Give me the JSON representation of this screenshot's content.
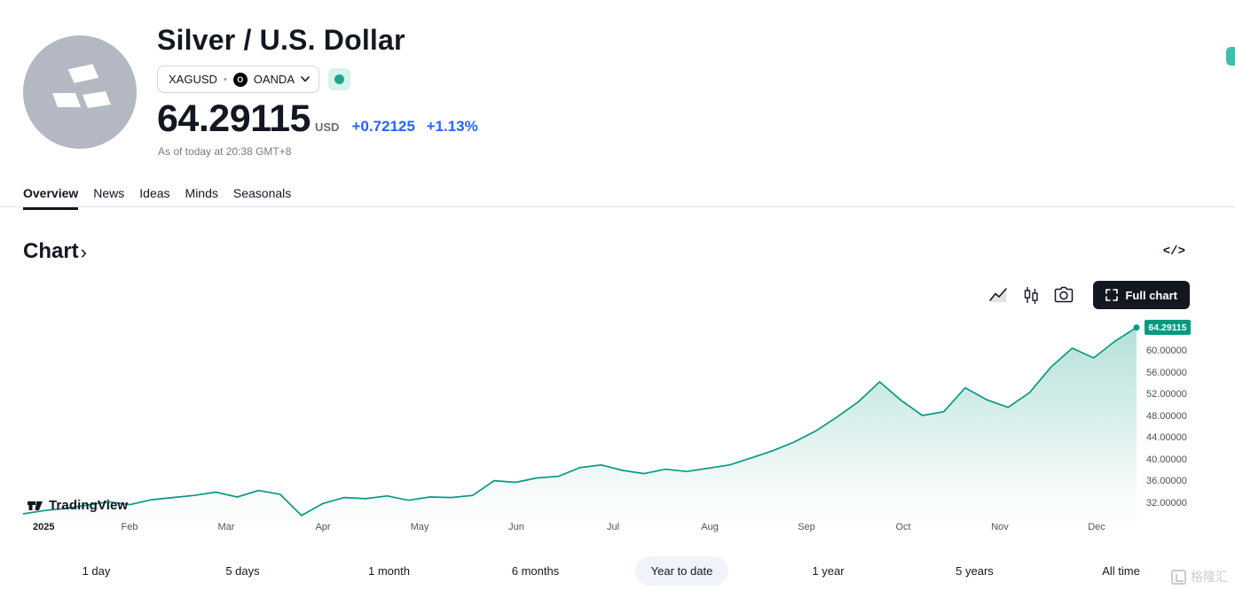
{
  "header": {
    "title": "Silver / U.S. Dollar",
    "symbol": "XAGUSD",
    "separator": "•",
    "exchange": "OANDA",
    "exchange_logo_letter": "O",
    "price": "64.29115",
    "currency": "USD",
    "change_abs": "+0.72125",
    "change_pct": "+1.13%",
    "as_of": "As of today at 20:38 GMT+8"
  },
  "tabs": {
    "items": [
      {
        "label": "Overview",
        "active": true
      },
      {
        "label": "News"
      },
      {
        "label": "Ideas"
      },
      {
        "label": "Minds"
      },
      {
        "label": "Seasonals"
      }
    ]
  },
  "chart_section": {
    "heading": "Chart",
    "chevron": "›",
    "code_icon_text": "</>",
    "full_chart_label": "Full chart",
    "logo_text": "TradingView"
  },
  "ranges": {
    "items": [
      {
        "label": "1 day"
      },
      {
        "label": "5 days"
      },
      {
        "label": "1 month"
      },
      {
        "label": "6 months"
      },
      {
        "label": "Year to date",
        "active": true
      },
      {
        "label": "1 year"
      },
      {
        "label": "5 years"
      },
      {
        "label": "All time"
      }
    ]
  },
  "watermark": {
    "text": "格隆汇"
  },
  "colors": {
    "accent_teal": "#089981",
    "change_blue": "#2962FF",
    "badge_bg": "#089981",
    "pill_bg": "#F0F3FA",
    "text_primary": "#131722",
    "text_secondary": "#787B86",
    "avatar_bg": "#B4B8C2"
  },
  "chart_data": {
    "type": "area",
    "title": "XAGUSD Year to date",
    "legend": [],
    "grid": false,
    "x_ticks": [
      "2025",
      "Feb",
      "Mar",
      "Apr",
      "May",
      "Jun",
      "Jul",
      "Aug",
      "Sep",
      "Oct",
      "Nov",
      "Dec"
    ],
    "y_ticks": [
      "60.00000",
      "56.00000",
      "52.00000",
      "48.00000",
      "44.00000",
      "40.00000",
      "36.00000",
      "32.00000"
    ],
    "y_tick_values": [
      60,
      56,
      52,
      48,
      44,
      40,
      36,
      32
    ],
    "ylim": [
      28.7,
      66.2
    ],
    "last_price": 64.29115,
    "last_price_label": "64.29115",
    "values": [
      30.0,
      30.6,
      31.0,
      31.6,
      32.2,
      31.7,
      32.6,
      33.0,
      33.4,
      34.0,
      33.1,
      34.3,
      33.6,
      29.7,
      31.9,
      33.0,
      32.8,
      33.3,
      32.5,
      33.1,
      33.0,
      33.4,
      36.1,
      35.8,
      36.6,
      36.9,
      38.5,
      39.0,
      38.0,
      37.4,
      38.2,
      37.8,
      38.4,
      39.0,
      40.3,
      41.6,
      43.2,
      45.2,
      47.8,
      50.6,
      54.3,
      50.9,
      48.1,
      48.8,
      53.2,
      51.0,
      49.6,
      52.3,
      57.0,
      60.5,
      58.7,
      61.8,
      64.29115
    ]
  }
}
